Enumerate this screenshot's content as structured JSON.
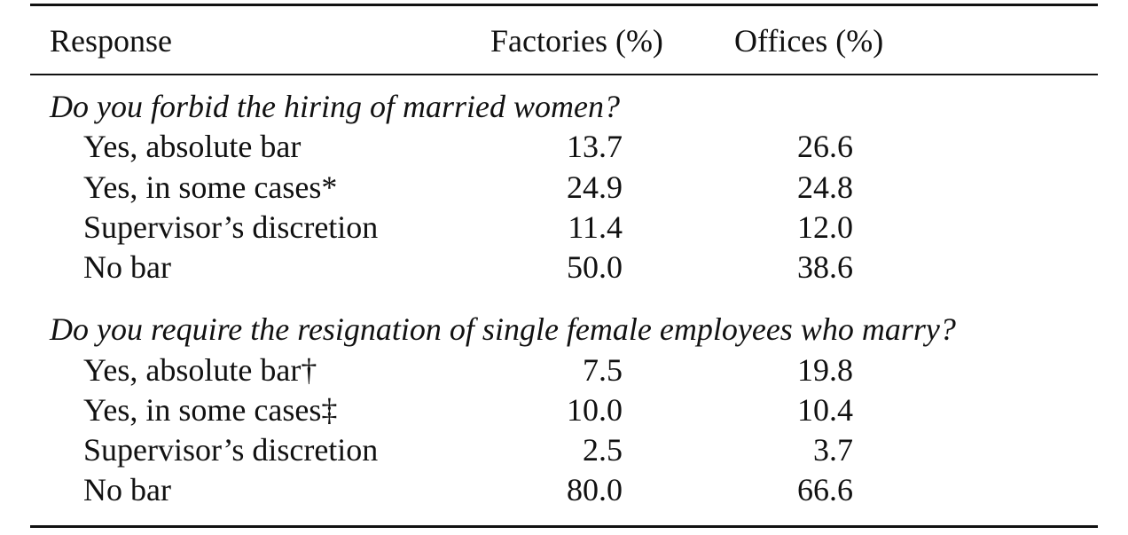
{
  "table": {
    "headers": {
      "response": "Response",
      "factories": "Factories (%)",
      "offices": "Offices (%)"
    },
    "sections": [
      {
        "title": "Do you forbid the hiring of married women?",
        "rows": [
          {
            "label": "Yes, absolute bar",
            "factories": "13.7",
            "offices": "26.6"
          },
          {
            "label": "Yes, in some cases*",
            "factories": "24.9",
            "offices": "24.8"
          },
          {
            "label": "Supervisor’s discretion",
            "factories": "11.4",
            "offices": "12.0"
          },
          {
            "label": "No bar",
            "factories": "50.0",
            "offices": "38.6"
          }
        ]
      },
      {
        "title": "Do you require the resignation of single female employees who marry?",
        "rows": [
          {
            "label": "Yes, absolute bar†",
            "factories": "7.5",
            "offices": "19.8"
          },
          {
            "label": "Yes, in some cases‡",
            "factories": "10.0",
            "offices": "10.4"
          },
          {
            "label": "Supervisor’s discretion",
            "factories": "2.5",
            "offices": "3.7"
          },
          {
            "label": "No bar",
            "factories": "80.0",
            "offices": "66.6"
          }
        ]
      }
    ]
  }
}
